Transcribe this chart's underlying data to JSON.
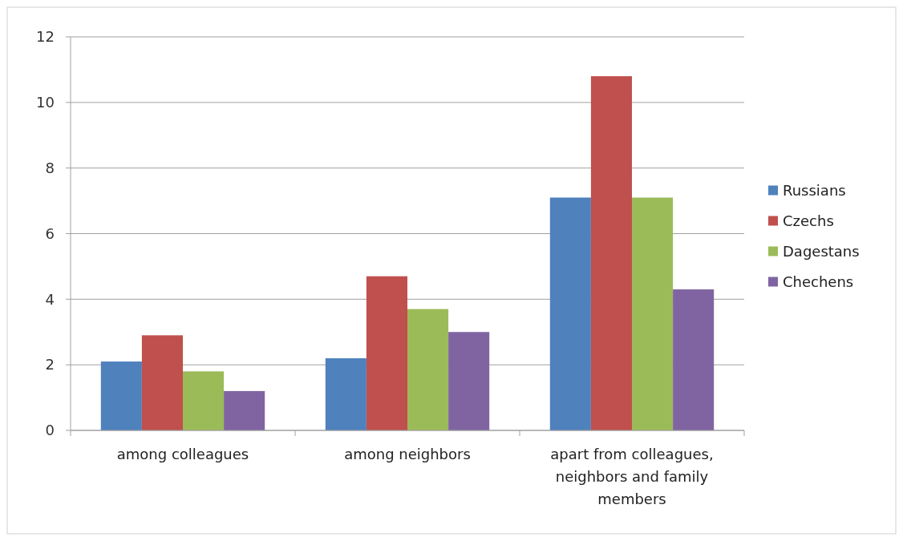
{
  "chart_data": {
    "type": "bar",
    "categories": [
      "among colleagues",
      "among neighbors",
      "apart from colleagues, neighbors and family members"
    ],
    "series": [
      {
        "name": "Russians",
        "color": "#4f81bd",
        "values": [
          2.1,
          2.2,
          7.1
        ]
      },
      {
        "name": "Czechs",
        "color": "#c0504d",
        "values": [
          2.9,
          4.7,
          10.8
        ]
      },
      {
        "name": "Dagestans",
        "color": "#9bbb59",
        "values": [
          1.8,
          3.7,
          7.1
        ]
      },
      {
        "name": "Chechens",
        "color": "#8064a2",
        "values": [
          1.2,
          3.0,
          4.3
        ]
      }
    ],
    "ylim": [
      0,
      12
    ],
    "yticks": [
      0,
      2,
      4,
      6,
      8,
      10,
      12
    ],
    "grid": "y",
    "legend": "right"
  }
}
